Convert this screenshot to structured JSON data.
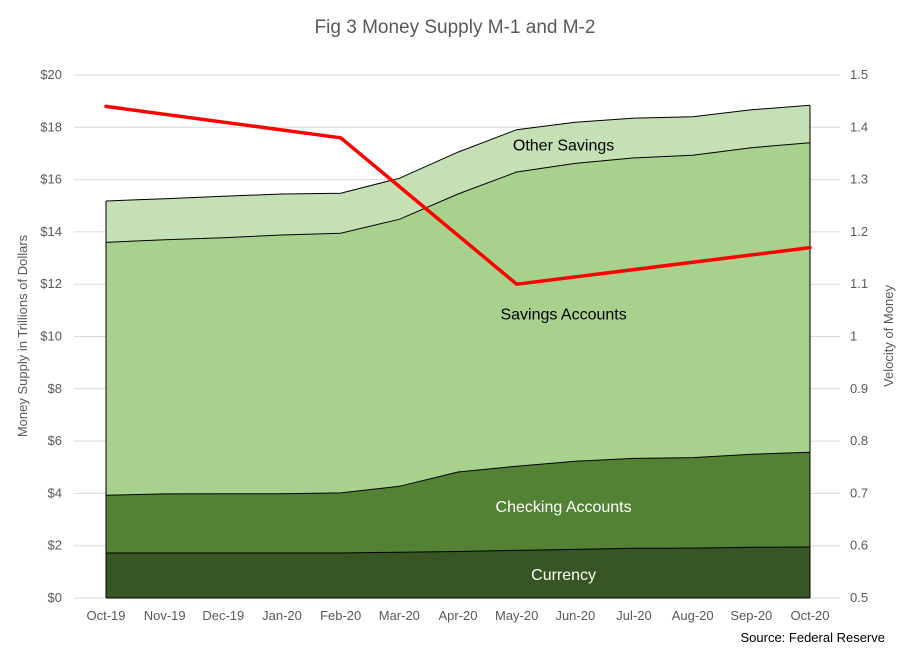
{
  "chart_data": {
    "type": "area",
    "title": "Fig 3 Money Supply M-1 and M-2",
    "source": "Source: Federal Reserve",
    "categories": [
      "Oct-19",
      "Nov-19",
      "Dec-19",
      "Jan-20",
      "Feb-20",
      "Mar-20",
      "Apr-20",
      "May-20",
      "Jun-20",
      "Jul-20",
      "Aug-20",
      "Sep-20",
      "Oct-20"
    ],
    "y_left": {
      "label": "Money Supply in Trillions of Dollars",
      "min": 0,
      "max": 20,
      "step": 2,
      "ticks": [
        "$0",
        "$2",
        "$4",
        "$6",
        "$8",
        "$10",
        "$12",
        "$14",
        "$16",
        "$18",
        "$20"
      ]
    },
    "y_right": {
      "label": "Velocity of Money",
      "min": 0.5,
      "max": 1.5,
      "step": 0.1,
      "ticks": [
        "0.5",
        "0.6",
        "0.7",
        "0.8",
        "0.9",
        "1",
        "1.1",
        "1.2",
        "1.3",
        "1.4",
        "1.5"
      ]
    },
    "grid": true,
    "stacked": true,
    "series": [
      {
        "name": "Currency",
        "color": "#375623",
        "label_color": "#ffffff",
        "values": [
          1.72,
          1.72,
          1.72,
          1.72,
          1.72,
          1.75,
          1.78,
          1.82,
          1.86,
          1.9,
          1.91,
          1.94,
          1.95
        ]
      },
      {
        "name": "Checking Accounts",
        "color": "#548235",
        "label_color": "#ffffff",
        "values": [
          2.21,
          2.26,
          2.27,
          2.27,
          2.3,
          2.52,
          3.04,
          3.22,
          3.37,
          3.44,
          3.46,
          3.56,
          3.62
        ]
      },
      {
        "name": "Savings Accounts",
        "color": "#a9d18e",
        "label_color": "#000000",
        "values": [
          9.67,
          9.72,
          9.79,
          9.89,
          9.93,
          10.21,
          10.63,
          11.25,
          11.39,
          11.49,
          11.56,
          11.72,
          11.84
        ]
      },
      {
        "name": "Other Savings",
        "color": "#c5e0b4",
        "label_color": "#000000",
        "values": [
          1.58,
          1.57,
          1.58,
          1.57,
          1.53,
          1.57,
          1.6,
          1.62,
          1.57,
          1.52,
          1.47,
          1.45,
          1.43
        ]
      }
    ],
    "line_series": {
      "name": "Velocity of Money",
      "axis": "right",
      "color": "#ff0000",
      "points": [
        {
          "x": "Oct-19",
          "y": 1.44
        },
        {
          "x": "Feb-20",
          "y": 1.38
        },
        {
          "x": "May-20",
          "y": 1.1
        },
        {
          "x": "Oct-20",
          "y": 1.17
        }
      ]
    }
  }
}
